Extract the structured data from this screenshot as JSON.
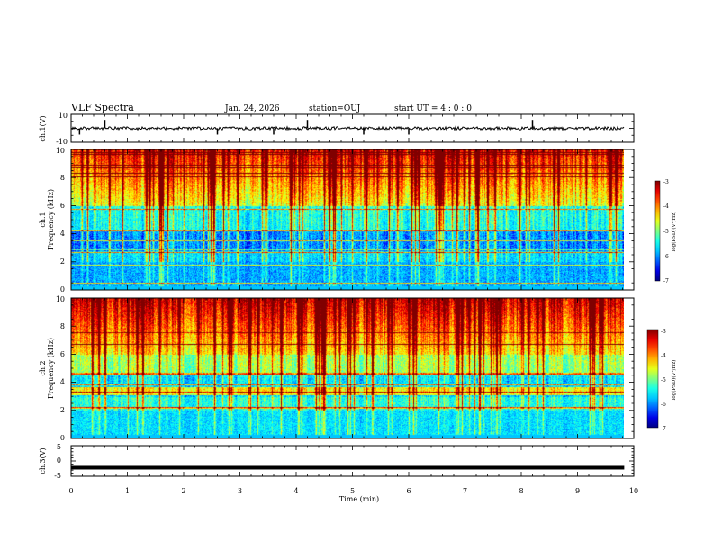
{
  "header": {
    "title": "VLF Spectra",
    "date": "Jan. 24, 2026",
    "station": "station=OUJ",
    "start": "start UT =  4 : 0 : 0"
  },
  "colors": {
    "colormap": [
      "#000080",
      "#0000ff",
      "#00a0ff",
      "#00ffff",
      "#80ff80",
      "#ffff00",
      "#ff8000",
      "#ff0000",
      "#800000"
    ],
    "trace": "#000000"
  },
  "chart_data": [
    {
      "type": "line",
      "panel": "ch1-waveform",
      "ylabel": "ch.1(V)",
      "ylim": [
        -10,
        10
      ],
      "yticks": [
        "10",
        "-10"
      ],
      "xlim": [
        0,
        10
      ],
      "baseline": 0,
      "spikes_min": [
        0.15,
        0.6,
        2.6,
        3.6,
        4.2,
        5.2,
        6.0,
        8.2
      ]
    },
    {
      "type": "heatmap",
      "panel": "ch1-spectrogram",
      "ylabel_line1": "ch.1",
      "ylabel_line2": "Frequency (kHz)",
      "ylim": [
        0,
        10
      ],
      "yticks": [
        "0",
        "2",
        "4",
        "6",
        "8",
        "10"
      ],
      "xlim": [
        0,
        10
      ],
      "data_end_min": 9.83,
      "colorbar": {
        "label": "log(PSD)(V²/Hz)",
        "range": [
          -7,
          -3
        ],
        "ticks": [
          "-3",
          "-4",
          "-5",
          "-6",
          "-7"
        ]
      }
    },
    {
      "type": "heatmap",
      "panel": "ch2-spectrogram",
      "ylabel_line1": "ch.2",
      "ylabel_line2": "Frequency (kHz)",
      "ylim": [
        0,
        10
      ],
      "yticks": [
        "0",
        "2",
        "4",
        "6",
        "8",
        "10"
      ],
      "xlim": [
        0,
        10
      ],
      "data_end_min": 9.83,
      "colorbar": {
        "label": "log(PSD)(V²/Hz)",
        "range": [
          -7,
          -3
        ],
        "ticks": [
          "-3",
          "-4",
          "-5",
          "-6",
          "-7"
        ]
      }
    },
    {
      "type": "line",
      "panel": "ch3-waveform",
      "ylabel": "ch.3(V)",
      "ylim": [
        -5,
        5
      ],
      "yticks": [
        "5",
        "0",
        "-5"
      ],
      "xlim": [
        0,
        10
      ],
      "baseline": -2.2
    }
  ],
  "xaxis": {
    "label": "Time (min)",
    "ticks": [
      "0",
      "1",
      "2",
      "3",
      "4",
      "5",
      "6",
      "7",
      "8",
      "9",
      "10"
    ]
  }
}
